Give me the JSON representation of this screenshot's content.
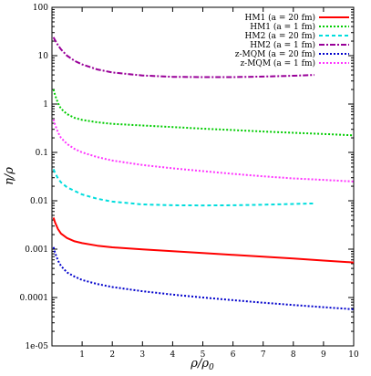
{
  "chart_data": {
    "type": "line",
    "title": "",
    "xlabel": "ρ/ρ",
    "xlabel_subscript": "0",
    "ylabel": "η/ρ",
    "xlim": [
      0,
      10
    ],
    "ylim": [
      1e-05,
      100
    ],
    "yscale": "log",
    "x_ticks": [
      1,
      2,
      3,
      4,
      5,
      6,
      7,
      8,
      9,
      10
    ],
    "x_tick_labels": [
      "1",
      "2",
      "3",
      "4",
      "5",
      "6",
      "7",
      "8",
      "9",
      "10"
    ],
    "y_ticks": [
      1e-05,
      0.0001,
      0.001,
      0.01,
      0.1,
      1,
      10,
      100
    ],
    "y_tick_labels": [
      "1e-05",
      "0.0001",
      "0.001",
      "0.01",
      "0.1",
      "1",
      "10",
      "100"
    ],
    "grid": false,
    "legend_position": "top-right",
    "series": [
      {
        "name": "HM1 (a = 20 fm)",
        "color": "#ff0000",
        "dash": "solid",
        "points": [
          [
            0.05,
            0.0045
          ],
          [
            0.1,
            0.0036
          ],
          [
            0.2,
            0.0026
          ],
          [
            0.3,
            0.0021
          ],
          [
            0.5,
            0.0017
          ],
          [
            0.75,
            0.00145
          ],
          [
            1,
            0.00133
          ],
          [
            1.5,
            0.00118
          ],
          [
            2,
            0.00109
          ],
          [
            3,
            0.00099
          ],
          [
            4,
            0.00091
          ],
          [
            5,
            0.00083
          ],
          [
            6,
            0.00076
          ],
          [
            7,
            0.0007
          ],
          [
            8,
            0.00064
          ],
          [
            9,
            0.00058
          ],
          [
            10,
            0.00053
          ]
        ]
      },
      {
        "name": "HM1 (a = 1 fm)",
        "color": "#00cc00",
        "dash": "dotted",
        "points": [
          [
            0.05,
            2.0
          ],
          [
            0.1,
            1.55
          ],
          [
            0.2,
            1.05
          ],
          [
            0.3,
            0.8
          ],
          [
            0.5,
            0.62
          ],
          [
            0.75,
            0.52
          ],
          [
            1,
            0.47
          ],
          [
            1.5,
            0.42
          ],
          [
            2,
            0.39
          ],
          [
            3,
            0.36
          ],
          [
            4,
            0.335
          ],
          [
            5,
            0.31
          ],
          [
            6,
            0.29
          ],
          [
            7,
            0.27
          ],
          [
            8,
            0.255
          ],
          [
            9,
            0.24
          ],
          [
            10,
            0.225
          ]
        ]
      },
      {
        "name": "HM2 (a = 20 fm)",
        "color": "#00dddd",
        "dash": "dashed",
        "points": [
          [
            0.05,
            0.045
          ],
          [
            0.1,
            0.038
          ],
          [
            0.2,
            0.029
          ],
          [
            0.3,
            0.024
          ],
          [
            0.5,
            0.019
          ],
          [
            0.75,
            0.016
          ],
          [
            1,
            0.0135
          ],
          [
            1.5,
            0.011
          ],
          [
            2,
            0.0096
          ],
          [
            3,
            0.0084
          ],
          [
            4,
            0.0081
          ],
          [
            5,
            0.008
          ],
          [
            6,
            0.0081
          ],
          [
            7,
            0.0083
          ],
          [
            8,
            0.0086
          ],
          [
            8.7,
            0.0088
          ]
        ]
      },
      {
        "name": "HM2 (a = 1 fm)",
        "color": "#990099",
        "dash": "dash-dot",
        "points": [
          [
            0.05,
            24
          ],
          [
            0.1,
            21
          ],
          [
            0.2,
            16.5
          ],
          [
            0.3,
            13.5
          ],
          [
            0.5,
            10
          ],
          [
            0.75,
            7.8
          ],
          [
            1,
            6.6
          ],
          [
            1.5,
            5.2
          ],
          [
            2,
            4.5
          ],
          [
            3,
            3.9
          ],
          [
            4,
            3.65
          ],
          [
            5,
            3.6
          ],
          [
            6,
            3.6
          ],
          [
            7,
            3.7
          ],
          [
            8,
            3.85
          ],
          [
            8.7,
            4.0
          ]
        ]
      },
      {
        "name": "z-MQM (a = 20 fm)",
        "color": "#0000cc",
        "dash": "dotted",
        "points": [
          [
            0.05,
            0.0011
          ],
          [
            0.1,
            0.00085
          ],
          [
            0.2,
            0.00058
          ],
          [
            0.3,
            0.00045
          ],
          [
            0.5,
            0.00033
          ],
          [
            0.75,
            0.00027
          ],
          [
            1,
            0.00023
          ],
          [
            1.5,
            0.00019
          ],
          [
            2,
            0.000165
          ],
          [
            3,
            0.000135
          ],
          [
            4,
            0.000115
          ],
          [
            5,
            0.0001
          ],
          [
            6,
            8.8e-05
          ],
          [
            7,
            7.8e-05
          ],
          [
            8,
            7e-05
          ],
          [
            9,
            6.3e-05
          ],
          [
            10,
            5.7e-05
          ]
        ]
      },
      {
        "name": "z-MQM (a = 1 fm)",
        "color": "#ff33ff",
        "dash": "dotted",
        "points": [
          [
            0.05,
            0.48
          ],
          [
            0.1,
            0.38
          ],
          [
            0.2,
            0.26
          ],
          [
            0.3,
            0.2
          ],
          [
            0.5,
            0.15
          ],
          [
            0.75,
            0.118
          ],
          [
            1,
            0.1
          ],
          [
            1.5,
            0.08
          ],
          [
            2,
            0.068
          ],
          [
            3,
            0.055
          ],
          [
            4,
            0.047
          ],
          [
            5,
            0.041
          ],
          [
            6,
            0.036
          ],
          [
            7,
            0.032
          ],
          [
            8,
            0.029
          ],
          [
            9,
            0.027
          ],
          [
            10,
            0.025
          ]
        ]
      }
    ]
  }
}
